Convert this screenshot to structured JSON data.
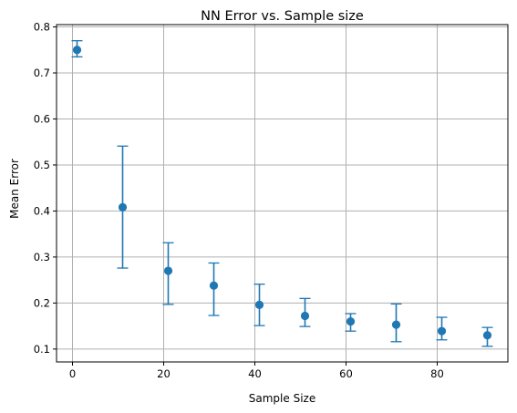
{
  "chart_data": {
    "type": "scatter",
    "title": "NN Error vs. Sample size",
    "xlabel": "Sample Size",
    "ylabel": "Mean Error",
    "xlim": [
      -3.5,
      95.5
    ],
    "ylim": [
      0.072,
      0.805
    ],
    "xticks": [
      0,
      20,
      40,
      60,
      80
    ],
    "yticks": [
      0.1,
      0.2,
      0.3,
      0.4,
      0.5,
      0.6,
      0.7,
      0.8
    ],
    "grid": true,
    "color": "#1f77b4",
    "points": [
      {
        "x": 1,
        "y": 0.75,
        "lower": 0.735,
        "upper": 0.77
      },
      {
        "x": 11,
        "y": 0.408,
        "lower": 0.276,
        "upper": 0.541
      },
      {
        "x": 21,
        "y": 0.27,
        "lower": 0.197,
        "upper": 0.331
      },
      {
        "x": 31,
        "y": 0.238,
        "lower": 0.173,
        "upper": 0.287
      },
      {
        "x": 41,
        "y": 0.196,
        "lower": 0.151,
        "upper": 0.241
      },
      {
        "x": 51,
        "y": 0.172,
        "lower": 0.149,
        "upper": 0.21
      },
      {
        "x": 61,
        "y": 0.16,
        "lower": 0.139,
        "upper": 0.177
      },
      {
        "x": 71,
        "y": 0.153,
        "lower": 0.116,
        "upper": 0.198
      },
      {
        "x": 81,
        "y": 0.139,
        "lower": 0.12,
        "upper": 0.169
      },
      {
        "x": 91,
        "y": 0.13,
        "lower": 0.106,
        "upper": 0.147
      }
    ]
  }
}
